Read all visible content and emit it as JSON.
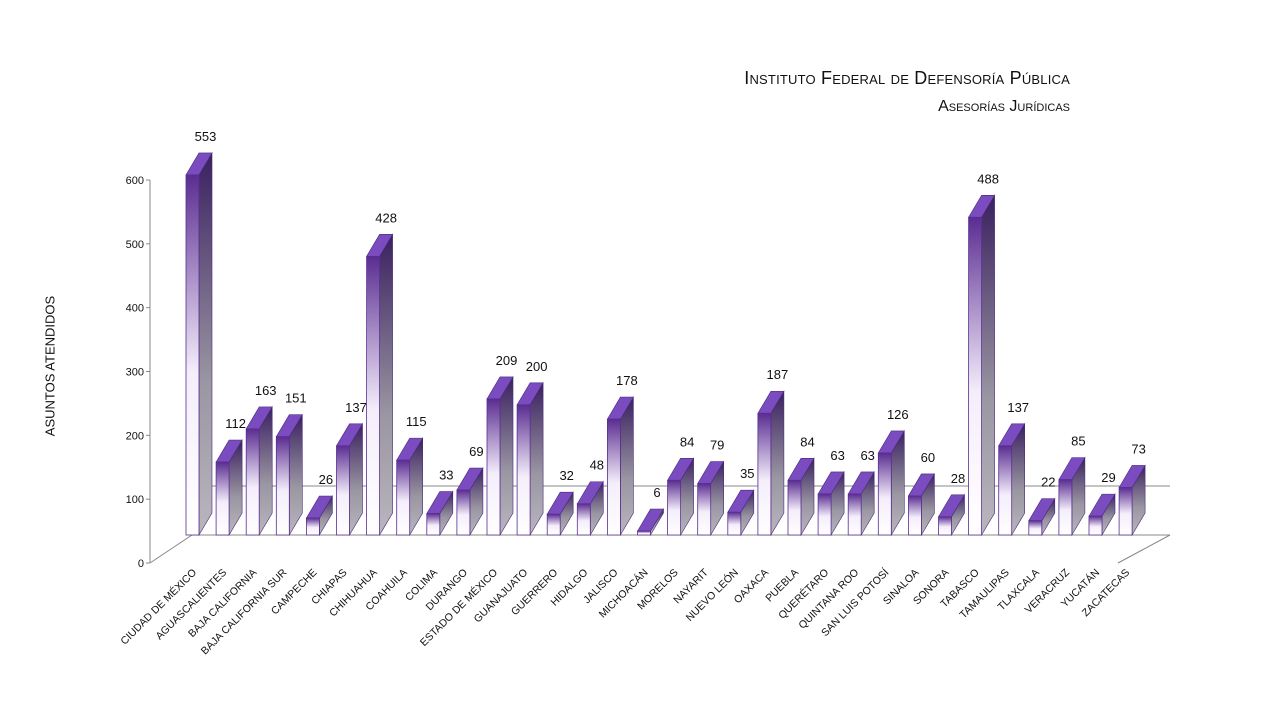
{
  "chart_data": {
    "type": "bar",
    "title": "Instituto Federal de Defensoría Pública",
    "subtitle": "Asesorías Jurídicas",
    "xlabel": "",
    "ylabel": "ASUNTOS ATENDIDOS",
    "ylim": [
      0,
      600
    ],
    "yticks": [
      0,
      100,
      200,
      300,
      400,
      500,
      600
    ],
    "grid": false,
    "legend": "none",
    "three_d": true,
    "colors": {
      "front_top": "#5a2d91",
      "front_bottom": "#ffffff",
      "side": "#3a2060",
      "top": "#7a4cc0"
    },
    "categories": [
      "CIUDAD DE MÉXICO",
      "AGUASCALIENTES",
      "BAJA CALIFORNIA",
      "BAJA CALIFORNIA SUR",
      "CAMPECHE",
      "CHIAPAS",
      "CHIHUAHUA",
      "COAHUILA",
      "COLIMA",
      "DURANGO",
      "ESTADO DE MÉXICO",
      "GUANAJUATO",
      "GUERRERO",
      "HIDALGO",
      "JALISCO",
      "MICHOACÁN",
      "MORELOS",
      "NAYARIT",
      "NUEVO LEÓN",
      "OAXACA",
      "PUEBLA",
      "QUERÉTARO",
      "QUINTANA ROO",
      "SAN LUIS POTOSÍ",
      "SINALOA",
      "SONORA",
      "TABASCO",
      "TAMAULIPAS",
      "TLAXCALA",
      "VERACRUZ",
      "YUCATÁN",
      "ZACATECAS"
    ],
    "values": [
      553,
      112,
      163,
      151,
      26,
      137,
      428,
      115,
      33,
      69,
      209,
      200,
      32,
      48,
      178,
      6,
      84,
      79,
      35,
      187,
      84,
      63,
      63,
      126,
      60,
      28,
      488,
      137,
      22,
      85,
      29,
      73
    ],
    "data_labels": [
      "553",
      "112",
      "163",
      "151",
      "26",
      "137",
      "428",
      "115",
      "33",
      "69",
      "209",
      "200",
      "32",
      "48",
      "178",
      "6",
      "84",
      "79",
      "35",
      "187",
      "84",
      "63",
      "63",
      "126",
      "60",
      "28",
      "488",
      "137",
      "22",
      "85",
      "29",
      "73"
    ]
  }
}
